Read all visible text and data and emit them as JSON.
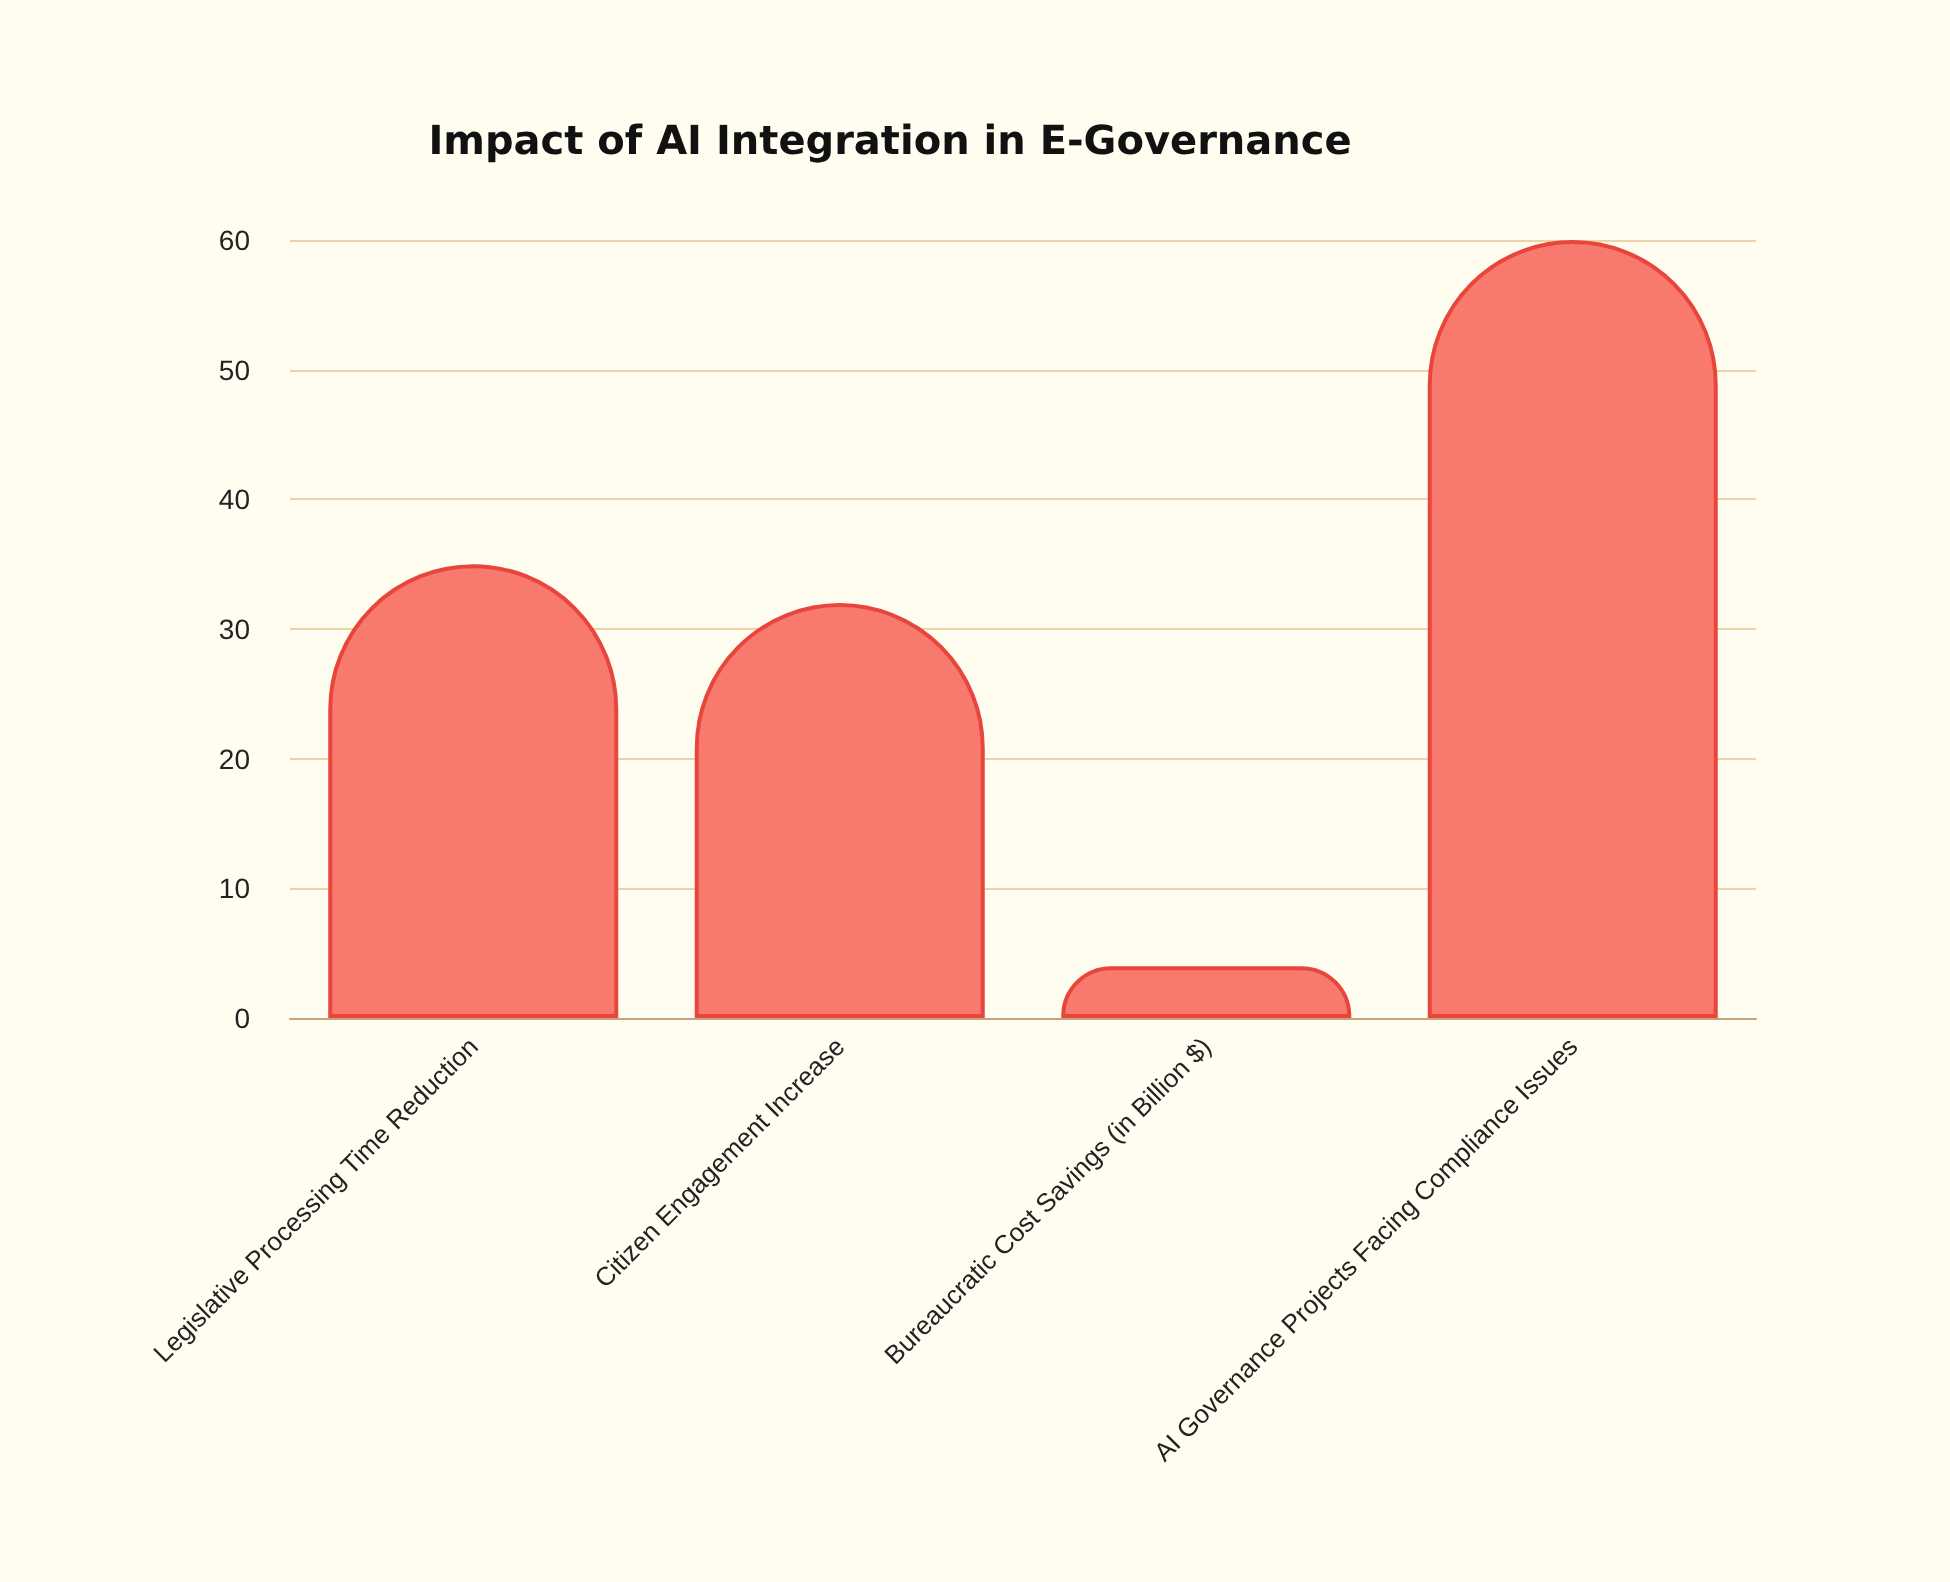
{
  "chart_data": {
    "type": "bar",
    "title": "Impact of AI Integration in E-Governance",
    "categories": [
      "Legislative Processing Time Reduction",
      "Citizen Engagement Increase",
      "Bureaucratic Cost Savings (in Billion $)",
      "AI Governance Projects Facing Compliance Issues"
    ],
    "values": [
      35,
      32,
      4,
      60
    ],
    "color": "#f87a6e",
    "ylim": [
      0,
      60
    ],
    "yticks": [
      0,
      10,
      20,
      30,
      40,
      50,
      60
    ],
    "grid": "y"
  }
}
